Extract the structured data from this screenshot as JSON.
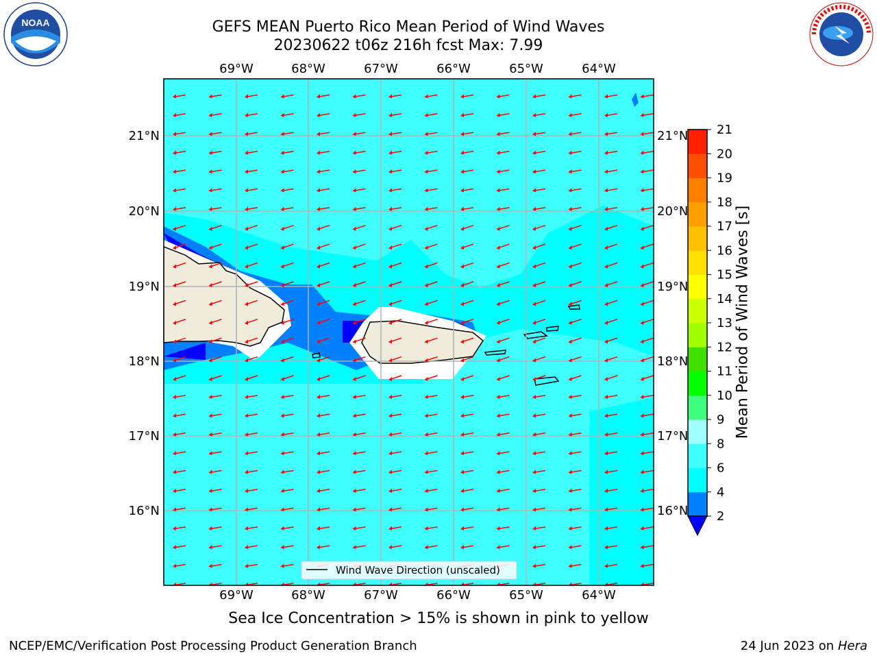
{
  "title": {
    "line1": "GEFS MEAN Puerto Rico Mean Period of Wind Waves",
    "line2": "20230622 t06z 216h fcst   Max: 7.99"
  },
  "map": {
    "lon_labels": [
      "69°W",
      "68°W",
      "67°W",
      "66°W",
      "65°W",
      "64°W"
    ],
    "lat_labels": [
      "21°N",
      "20°N",
      "19°N",
      "18°N",
      "17°N",
      "16°N"
    ],
    "legend_label": "Wind Wave Direction (unscaled)",
    "arrow_color": "#ff0000",
    "land_color": "#efecdc",
    "ocean_colors": {
      "lt4": "#0080ff",
      "4to6": "#00ffff",
      "6to8": "#40ffff",
      "lt2": "#0000ff"
    }
  },
  "colorbar": {
    "label": "Mean Period of Wind Waves [s]",
    "ticks": [
      "2",
      "4",
      "6",
      "8",
      "9",
      "10",
      "11",
      "12",
      "13",
      "14",
      "15",
      "16",
      "17",
      "18",
      "19",
      "20",
      "21"
    ],
    "colors": [
      "#0080ff",
      "#00ffff",
      "#40ffff",
      "#a0ffff",
      "#40ff80",
      "#00ff00",
      "#40e000",
      "#a0ff00",
      "#ccff00",
      "#ffff00",
      "#ffe000",
      "#ffc000",
      "#ffa000",
      "#ff8000",
      "#ff5000",
      "#ff2000"
    ],
    "under_color": "#0000ff"
  },
  "ice_note": "Sea Ice Concentration > 15% is shown in pink to yellow",
  "footer": {
    "left": "NCEP/EMC/Verification Post Processing Product Generation Branch",
    "right_date": "24 Jun 2023 on",
    "right_host": "Hera"
  },
  "logos": {
    "noaa": "NOAA",
    "nws": "NATIONAL WEATHER SERVICE"
  }
}
